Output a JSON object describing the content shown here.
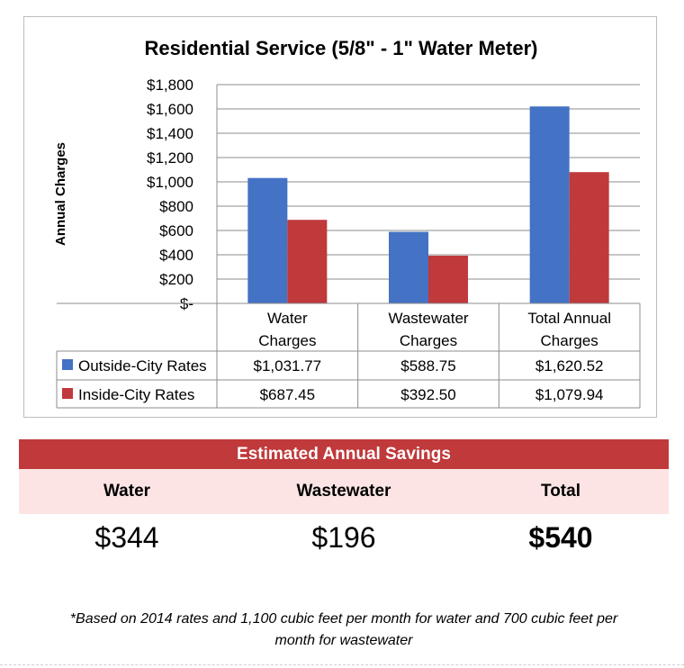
{
  "chart_data": {
    "type": "bar",
    "title": "Residential Service (5/8\" - 1\" Water Meter)",
    "ylabel": "Annual Charges",
    "xlabel": "",
    "ylim": [
      0,
      1800
    ],
    "y_ticks": [
      "$-",
      "$200",
      "$400",
      "$600",
      "$800",
      "$1,000",
      "$1,200",
      "$1,400",
      "$1,600",
      "$1,800"
    ],
    "y_tick_values": [
      0,
      200,
      400,
      600,
      800,
      1000,
      1200,
      1400,
      1600,
      1800
    ],
    "grid": true,
    "legend_position": "data-table",
    "categories": [
      [
        "Water",
        "Charges"
      ],
      [
        "Wastewater",
        "Charges"
      ],
      [
        "Total Annual",
        "Charges"
      ]
    ],
    "series": [
      {
        "name": "Outside-City Rates",
        "color": "#4472c4",
        "values": [
          1031.77,
          588.75,
          1620.52
        ],
        "labels": [
          "$1,031.77",
          "$588.75",
          "$1,620.52"
        ]
      },
      {
        "name": "Inside-City Rates",
        "color": "#c0393b",
        "values": [
          687.45,
          392.5,
          1079.94
        ],
        "labels": [
          "$687.45",
          "$392.50",
          "$1,079.94"
        ]
      }
    ]
  },
  "savings": {
    "header": "Estimated Annual Savings",
    "columns": [
      {
        "label": "Water",
        "value": "$344"
      },
      {
        "label": "Wastewater",
        "value": "$196"
      },
      {
        "label": "Total",
        "value": "$540"
      }
    ]
  },
  "footnote": {
    "line1": "*Based on 2014 rates and 1,100 cubic feet per month for water and 700 cubic feet per",
    "line2": "month for wastewater"
  },
  "colors": {
    "header_bg": "#c0393b",
    "labels_bg": "#fde4e4"
  }
}
